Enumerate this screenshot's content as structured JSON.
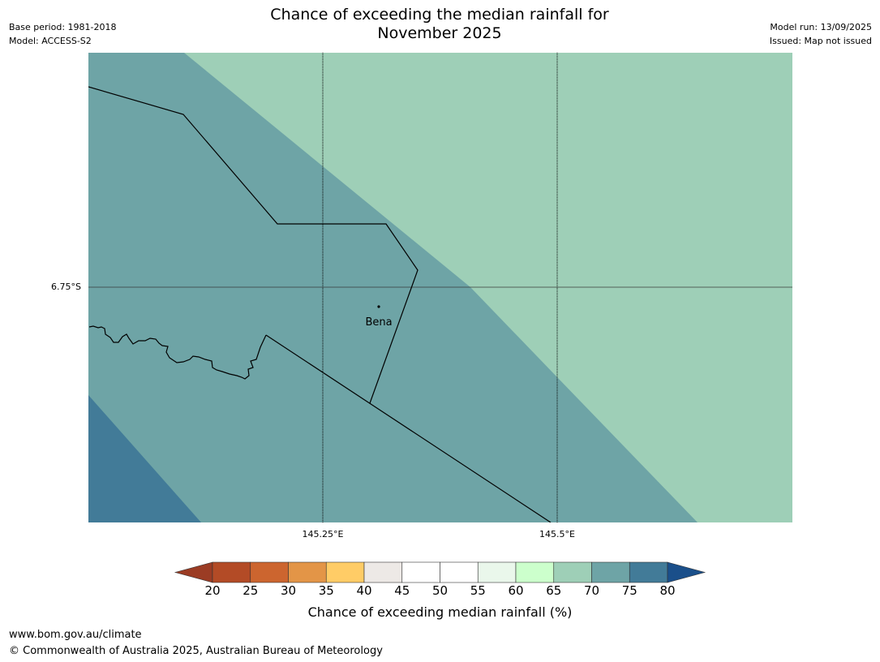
{
  "header": {
    "title_line1": "Chance of exceeding the median rainfall for",
    "title_line2": "November 2025",
    "base_period": "Base period: 1981-2018",
    "model": "Model: ACCESS-S2",
    "model_run": "Model run: 13/09/2025",
    "issued": "Issued: Map not issued"
  },
  "map": {
    "lat_label": "6.75°S",
    "lon_labels": [
      "145.25°E",
      "145.5°E"
    ],
    "place_label": "Bena",
    "zones": [
      {
        "range": "65-70",
        "color": "#9ecfb7"
      },
      {
        "range": "70-75",
        "color": "#6ea4a6"
      },
      {
        "range": "75-80",
        "color": "#427b98"
      }
    ]
  },
  "colorbar": {
    "ticks": [
      "20",
      "25",
      "30",
      "35",
      "40",
      "45",
      "50",
      "55",
      "60",
      "65",
      "70",
      "75",
      "80"
    ],
    "low_extend_color": "#9b3c24",
    "colors": [
      "#b34b26",
      "#cc652f",
      "#e39547",
      "#ffcc66",
      "#ede9e6",
      "#ffffff",
      "#ffffff",
      "#eaf7eb",
      "#ccffcc",
      "#9ecfb7",
      "#6ea4a6",
      "#427b98"
    ],
    "high_extend_color": "#1a4f8a",
    "label": "Chance of exceeding median rainfall (%)"
  },
  "footer": {
    "website": "www.bom.gov.au/climate",
    "copyright": "© Commonwealth of Australia 2025, Australian Bureau of Meteorology"
  }
}
